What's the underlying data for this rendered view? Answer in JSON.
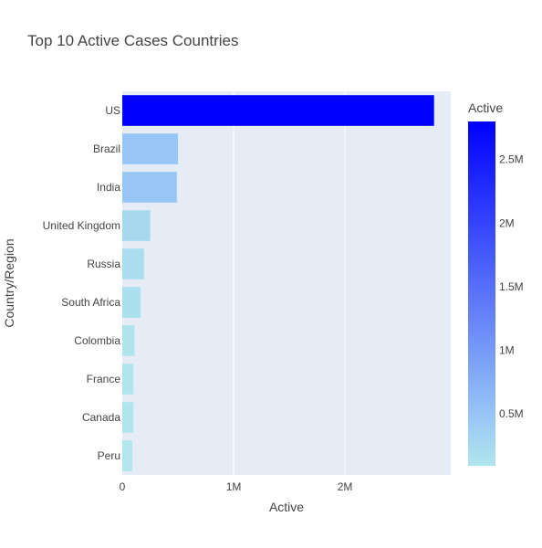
{
  "chart_data": {
    "type": "bar",
    "orientation": "horizontal",
    "title": "Top 10 Active Cases Countries",
    "xlabel": "Active",
    "ylabel": "Country/Region",
    "categories": [
      "US",
      "Brazil",
      "India",
      "United Kingdom",
      "Russia",
      "South Africa",
      "Colombia",
      "France",
      "Canada",
      "Peru"
    ],
    "values": [
      2800000,
      500000,
      490000,
      250000,
      195000,
      165000,
      110000,
      100000,
      100000,
      90000
    ],
    "xlim": [
      0,
      2950000
    ],
    "x_ticks": [
      {
        "value": 0,
        "label": "0"
      },
      {
        "value": 1000000,
        "label": "1M"
      },
      {
        "value": 2000000,
        "label": "2M"
      }
    ],
    "colorbar": {
      "title": "Active",
      "range": [
        90000,
        2800000
      ],
      "colors": [
        "#b0e6ec",
        "#97c5f5",
        "#0000ff"
      ],
      "ticks": [
        {
          "value": 500000,
          "label": "0.5M"
        },
        {
          "value": 1000000,
          "label": "1M"
        },
        {
          "value": 1500000,
          "label": "1.5M"
        },
        {
          "value": 2000000,
          "label": "2M"
        },
        {
          "value": 2500000,
          "label": "2.5M"
        }
      ]
    },
    "plot_background": "#e5ecf6",
    "grid": true
  }
}
